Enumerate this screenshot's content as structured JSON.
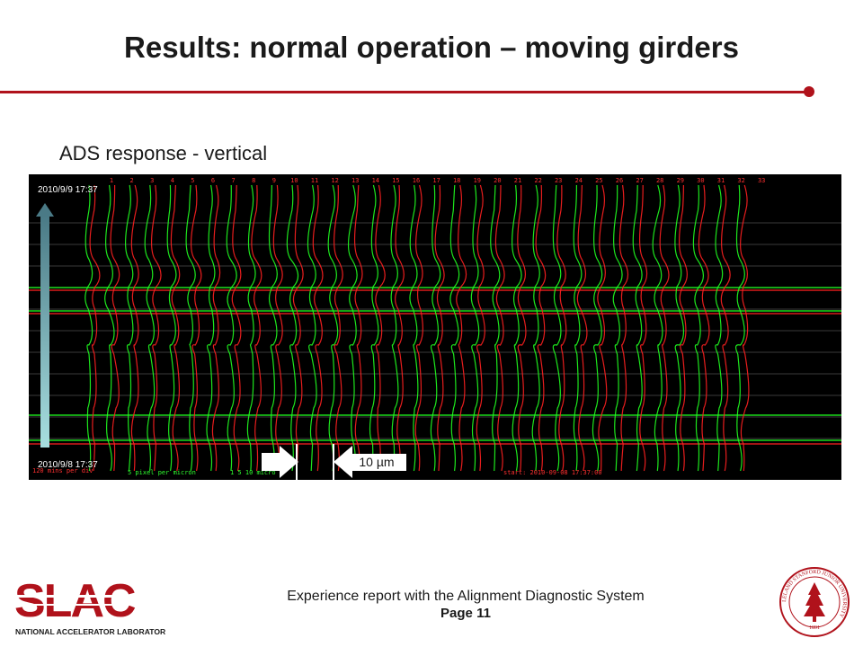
{
  "slide": {
    "title": "Results: normal operation – moving girders",
    "subtitle": "ADS response - vertical",
    "accent_color": "#b0121b"
  },
  "plot": {
    "timestamp_top": "2010/9/9 17:37",
    "timestamp_bottom": "2010/9/8 17:37",
    "channel_numbers": [
      "1",
      "2",
      "3",
      "4",
      "5",
      "6",
      "7",
      "8",
      "9",
      "10",
      "11",
      "12",
      "13",
      "14",
      "15",
      "16",
      "17",
      "18",
      "19",
      "20",
      "21",
      "22",
      "23",
      "24",
      "25",
      "26",
      "27",
      "28",
      "29",
      "30",
      "31",
      "32",
      "33"
    ],
    "footer_red_left": "120 mins per div",
    "footer_green_1": "5 pixel per micron",
    "footer_green_2": "1 5 10 micro",
    "footer_red_right": "start: 2010-09-08 17:37:00",
    "scale_label": "10 µm",
    "trace_colors": {
      "red": "#ff2020",
      "green": "#20ff20"
    },
    "time_arrow_icon": "arrow-up-icon",
    "scale_arrow_icons": [
      "arrow-right-icon",
      "arrow-left-icon"
    ]
  },
  "footer": {
    "line": "Experience report with the Alignment Diagnostic System",
    "page": "Page 11"
  },
  "branding": {
    "logo_name": "SLAC",
    "logo_subtext": "NATIONAL ACCELERATOR LABORATORY",
    "seal_text": "LELAND STANFORD JUNIOR UNIVERSITY",
    "seal_year": "1891"
  }
}
